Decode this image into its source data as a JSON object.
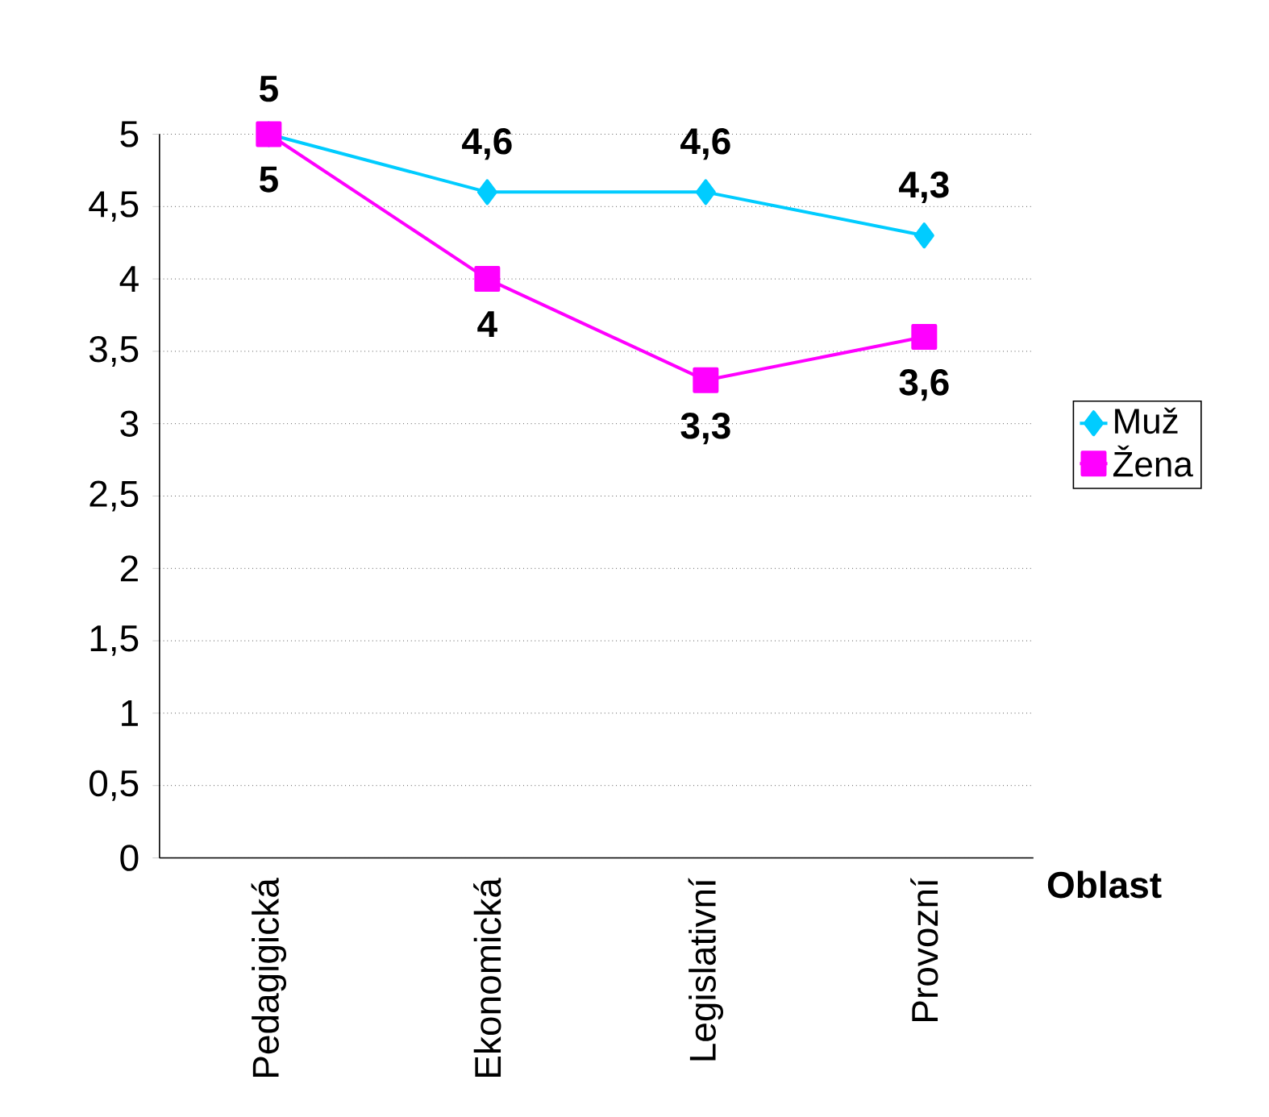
{
  "chart_data": {
    "type": "line",
    "xlabel": "Oblast",
    "categories": [
      "Pedagigická",
      "Ekonomická",
      "Legislativní",
      "Provozní"
    ],
    "series": [
      {
        "name": "Muž",
        "color": "#00ccff",
        "marker": "diamond",
        "values": [
          5,
          4.6,
          4.6,
          4.3
        ],
        "value_labels": [
          "5",
          "4,6",
          "4,6",
          "4,3"
        ]
      },
      {
        "name": "Žena",
        "color": "#ff00ff",
        "marker": "square",
        "values": [
          5,
          4,
          3.3,
          3.6
        ],
        "value_labels": [
          "5",
          "4",
          "3,3",
          "3,6"
        ]
      }
    ],
    "ylim": [
      0,
      5
    ],
    "yticks": [
      0,
      {
        "value": 0.5,
        "label": "0,5"
      },
      1,
      {
        "value": 1.5,
        "label": "1,5"
      },
      2,
      {
        "value": 2.5,
        "label": "2,5"
      },
      3,
      {
        "value": 3.5,
        "label": "3,5"
      },
      4,
      {
        "value": 4.5,
        "label": "4,5"
      },
      5
    ],
    "grid": "y",
    "legend": "right"
  }
}
